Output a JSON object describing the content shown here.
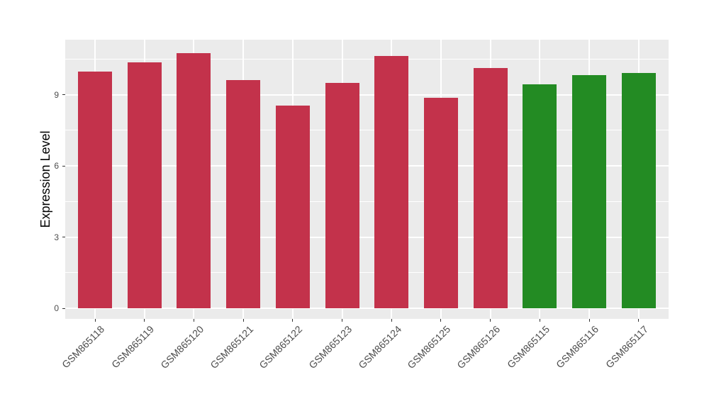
{
  "chart_data": {
    "type": "bar",
    "title": "",
    "xlabel": "",
    "ylabel": "Expression Level",
    "categories": [
      "GSM865118",
      "GSM865119",
      "GSM865120",
      "GSM865121",
      "GSM865122",
      "GSM865123",
      "GSM865124",
      "GSM865125",
      "GSM865126",
      "GSM865115",
      "GSM865116",
      "GSM865117"
    ],
    "values": [
      9.97,
      10.36,
      10.75,
      9.61,
      8.54,
      9.49,
      10.63,
      8.87,
      10.12,
      9.43,
      9.82,
      9.91
    ],
    "bar_color_keys": [
      "red",
      "red",
      "red",
      "red",
      "red",
      "red",
      "red",
      "red",
      "red",
      "green",
      "green",
      "green"
    ],
    "palette": {
      "red": "#C3324B",
      "green": "#238B23"
    },
    "y_ticks": [
      0,
      3,
      6,
      9
    ],
    "y_tick_labels": [
      "0",
      "3",
      "6",
      "9"
    ],
    "y_minor_ticks": [
      1.5,
      4.5,
      7.5,
      10.5
    ],
    "ylim": [
      -0.45,
      11.31
    ],
    "grid": "major-and-minor, white on grey panel",
    "legend": "none",
    "panel_background": "#EBEBEB",
    "gridline_color": "#FFFFFF",
    "tick_color": "#333333",
    "tick_label_color": "#4D4D4D"
  }
}
